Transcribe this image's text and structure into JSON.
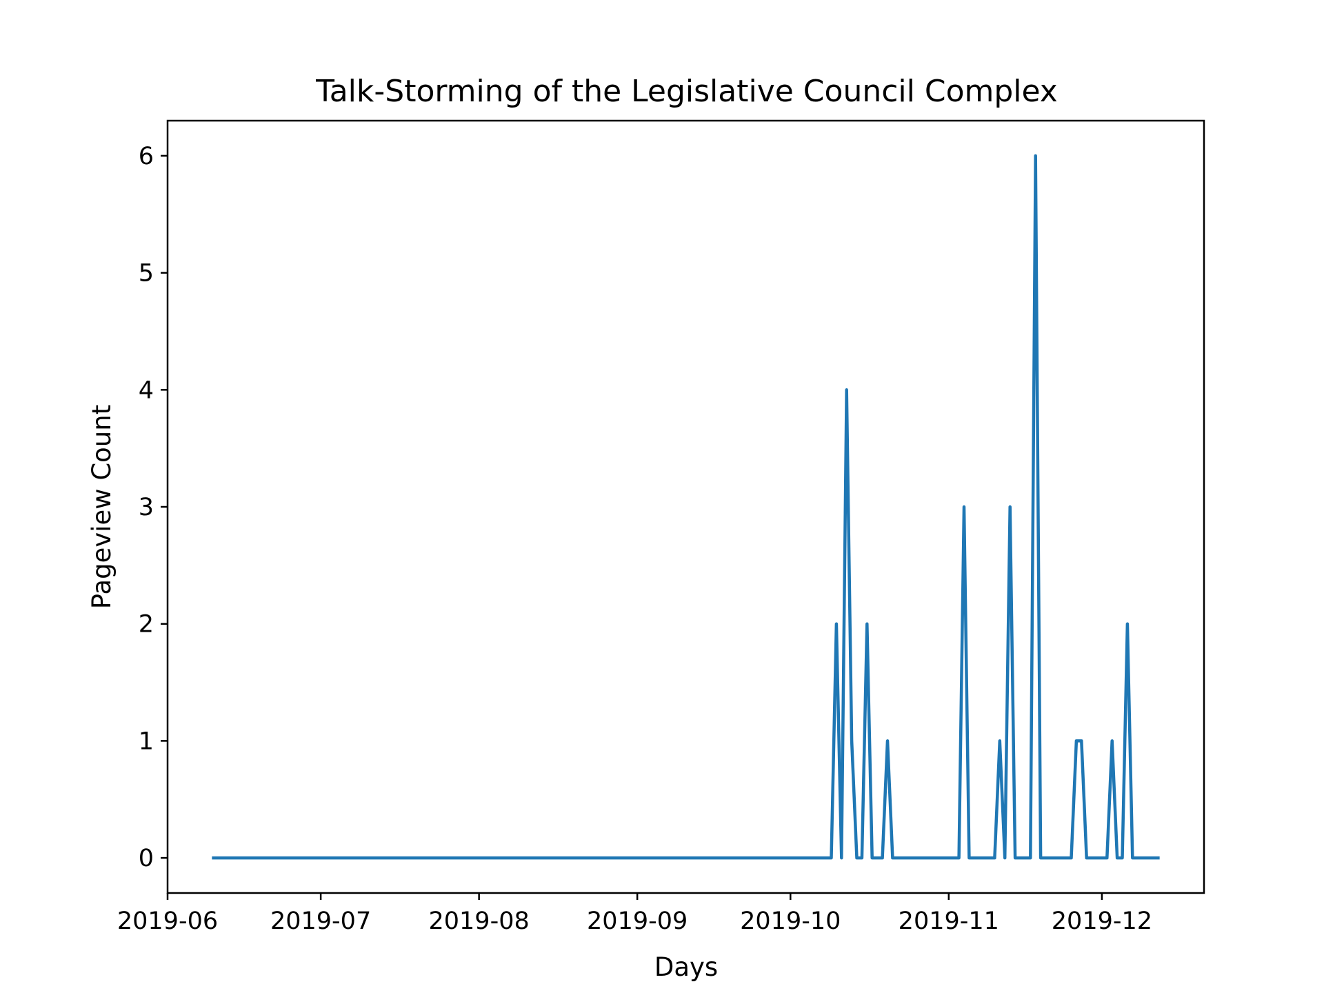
{
  "chart_data": {
    "type": "line",
    "title": "Talk-Storming of the Legislative Council Complex",
    "xlabel": "Days",
    "ylabel": "Pageview Count",
    "x_is_date": true,
    "xlim": [
      "2019-06-01",
      "2019-12-21"
    ],
    "ylim": [
      -0.3,
      6.3
    ],
    "x_ticks": [
      "2019-06-01",
      "2019-07-01",
      "2019-08-01",
      "2019-09-01",
      "2019-10-01",
      "2019-11-01",
      "2019-12-01"
    ],
    "x_tick_labels": [
      "2019-06",
      "2019-07",
      "2019-08",
      "2019-09",
      "2019-10",
      "2019-11",
      "2019-12"
    ],
    "y_ticks": [
      0,
      1,
      2,
      3,
      4,
      5,
      6
    ],
    "y_tick_labels": [
      "0",
      "1",
      "2",
      "3",
      "4",
      "5",
      "6"
    ],
    "grid": false,
    "color": "#1f77b4",
    "series": [
      {
        "x": [
          "2019-06-10",
          "2019-10-09",
          "2019-10-10",
          "2019-10-11",
          "2019-10-12",
          "2019-10-13",
          "2019-10-14",
          "2019-10-15",
          "2019-10-16",
          "2019-10-17",
          "2019-10-18",
          "2019-10-19",
          "2019-10-20",
          "2019-10-21",
          "2019-10-22",
          "2019-10-23",
          "2019-11-03",
          "2019-11-04",
          "2019-11-05",
          "2019-11-10",
          "2019-11-11",
          "2019-11-12",
          "2019-11-13",
          "2019-11-14",
          "2019-11-17",
          "2019-11-18",
          "2019-11-19",
          "2019-11-25",
          "2019-11-26",
          "2019-11-27",
          "2019-11-28",
          "2019-12-02",
          "2019-12-03",
          "2019-12-04",
          "2019-12-05",
          "2019-12-06",
          "2019-12-07",
          "2019-12-12"
        ],
        "values": [
          0,
          0,
          2,
          0,
          4,
          1,
          0,
          0,
          2,
          0,
          0,
          0,
          1,
          0,
          0,
          0,
          0,
          3,
          0,
          0,
          1,
          0,
          3,
          0,
          0,
          6,
          0,
          0,
          1,
          1,
          0,
          0,
          1,
          0,
          0,
          2,
          0,
          0
        ]
      }
    ]
  }
}
